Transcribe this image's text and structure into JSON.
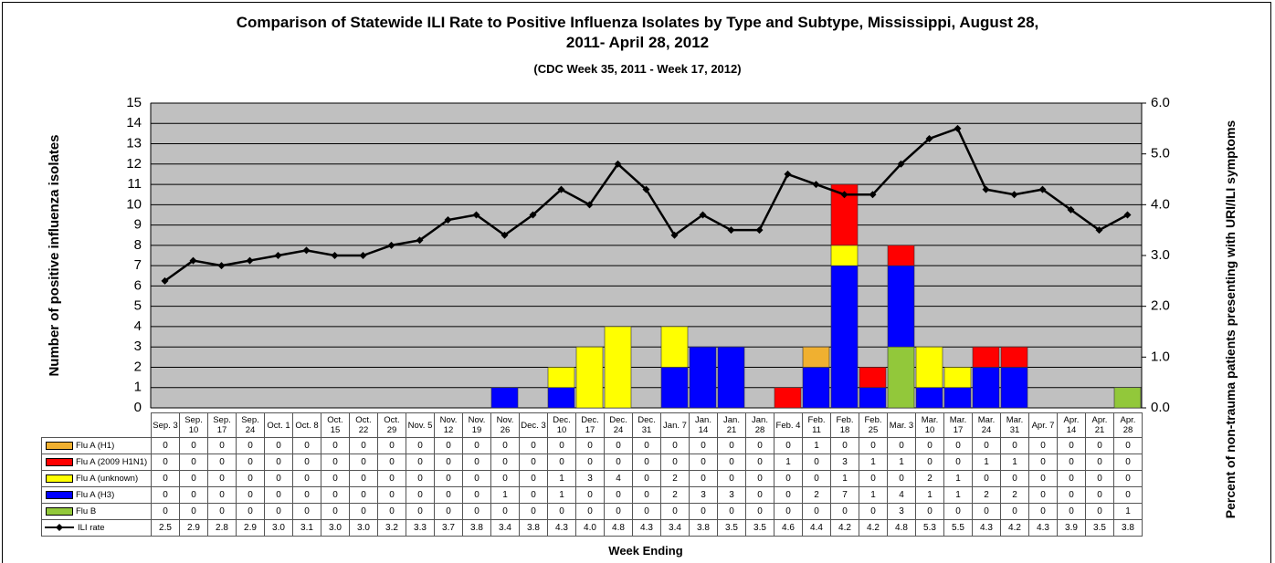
{
  "chart_data": {
    "type": "bar",
    "title": "Comparison of Statewide ILI Rate to Positive Influenza Isolates by Type and Subtype, Mississippi, August 28, 2011- April 28, 2012",
    "subtitle": "(CDC Week 35, 2011 - Week 17, 2012)",
    "xlabel": "Week Ending",
    "ylabel": "Number of positive influenza isolates",
    "y2label": "Percent of non-trauma patients presenting with URI/ILI symptoms",
    "categories": [
      "Sep. 3",
      "Sep. 10",
      "Sep. 17",
      "Sep. 24",
      "Oct. 1",
      "Oct. 8",
      "Oct. 15",
      "Oct. 22",
      "Oct. 29",
      "Nov. 5",
      "Nov. 12",
      "Nov. 19",
      "Nov. 26",
      "Dec. 3",
      "Dec. 10",
      "Dec. 17",
      "Dec. 24",
      "Dec. 31",
      "Jan. 7",
      "Jan. 14",
      "Jan. 21",
      "Jan. 28",
      "Feb. 4",
      "Feb. 11",
      "Feb. 18",
      "Feb. 25",
      "Mar. 3",
      "Mar. 10",
      "Mar. 17",
      "Mar. 24",
      "Mar. 31",
      "Apr. 7",
      "Apr. 14",
      "Apr. 21",
      "Apr. 28"
    ],
    "series": [
      {
        "name": "Flu A (H1)",
        "color": "#f0b030",
        "values": [
          0,
          0,
          0,
          0,
          0,
          0,
          0,
          0,
          0,
          0,
          0,
          0,
          0,
          0,
          0,
          0,
          0,
          0,
          0,
          0,
          0,
          0,
          0,
          1,
          0,
          0,
          0,
          0,
          0,
          0,
          0,
          0,
          0,
          0,
          0
        ]
      },
      {
        "name": "Flu A (2009 H1N1)",
        "color": "#ff0000",
        "values": [
          0,
          0,
          0,
          0,
          0,
          0,
          0,
          0,
          0,
          0,
          0,
          0,
          0,
          0,
          0,
          0,
          0,
          0,
          0,
          0,
          0,
          0,
          1,
          0,
          3,
          1,
          1,
          0,
          0,
          1,
          1,
          0,
          0,
          0,
          0
        ]
      },
      {
        "name": "Flu A (unknown)",
        "color": "#ffff00",
        "values": [
          0,
          0,
          0,
          0,
          0,
          0,
          0,
          0,
          0,
          0,
          0,
          0,
          0,
          0,
          1,
          3,
          4,
          0,
          2,
          0,
          0,
          0,
          0,
          0,
          1,
          0,
          0,
          2,
          1,
          0,
          0,
          0,
          0,
          0,
          0
        ]
      },
      {
        "name": "Flu A (H3)",
        "color": "#0000ff",
        "values": [
          0,
          0,
          0,
          0,
          0,
          0,
          0,
          0,
          0,
          0,
          0,
          0,
          1,
          0,
          1,
          0,
          0,
          0,
          2,
          3,
          3,
          0,
          0,
          2,
          7,
          1,
          4,
          1,
          1,
          2,
          2,
          0,
          0,
          0,
          0
        ]
      },
      {
        "name": "Flu B",
        "color": "#92c83a",
        "values": [
          0,
          0,
          0,
          0,
          0,
          0,
          0,
          0,
          0,
          0,
          0,
          0,
          0,
          0,
          0,
          0,
          0,
          0,
          0,
          0,
          0,
          0,
          0,
          0,
          0,
          0,
          3,
          0,
          0,
          0,
          0,
          0,
          0,
          0,
          1
        ]
      },
      {
        "name": "ILI rate",
        "color": "#000000",
        "type": "line",
        "axis": "y2",
        "values": [
          2.5,
          2.9,
          2.8,
          2.9,
          3.0,
          3.1,
          3.0,
          3.0,
          3.2,
          3.3,
          3.7,
          3.8,
          3.4,
          3.8,
          4.3,
          4.0,
          4.8,
          4.3,
          3.4,
          3.8,
          3.5,
          3.5,
          4.6,
          4.4,
          4.2,
          4.2,
          4.8,
          5.3,
          5.5,
          4.3,
          4.2,
          4.3,
          3.9,
          3.5,
          3.8
        ],
        "value_labels": [
          "2.5",
          "2.9",
          "2.8",
          "2.9",
          "3.0",
          "3.1",
          "3.0",
          "3.0",
          "3.2",
          "3.3",
          "3.7",
          "3.8",
          "3.4",
          "3.8",
          "4.3",
          "4.0",
          "4.8",
          "4.3",
          "3.4",
          "3.8",
          "3.5",
          "3.5",
          "4.6",
          "4.4",
          "4.2",
          "4.2",
          "4.8",
          "5.3",
          "5.5",
          "4.3",
          "4.2",
          "4.3",
          "3.9",
          "3.5",
          "3.8"
        ]
      }
    ],
    "ylim": [
      0,
      15
    ],
    "yticks": [
      0,
      1,
      2,
      3,
      4,
      5,
      6,
      7,
      8,
      9,
      10,
      11,
      12,
      13,
      14,
      15
    ],
    "y2lim": [
      0,
      6
    ],
    "y2ticks": [
      {
        "value": 0,
        "label": "0.0"
      },
      {
        "value": 1,
        "label": "1.0"
      },
      {
        "value": 2,
        "label": "2.0"
      },
      {
        "value": 3,
        "label": "3.0"
      },
      {
        "value": 4,
        "label": "4.0"
      },
      {
        "value": 5,
        "label": "5.0"
      },
      {
        "value": 6,
        "label": "6.0"
      }
    ],
    "grid": true
  }
}
